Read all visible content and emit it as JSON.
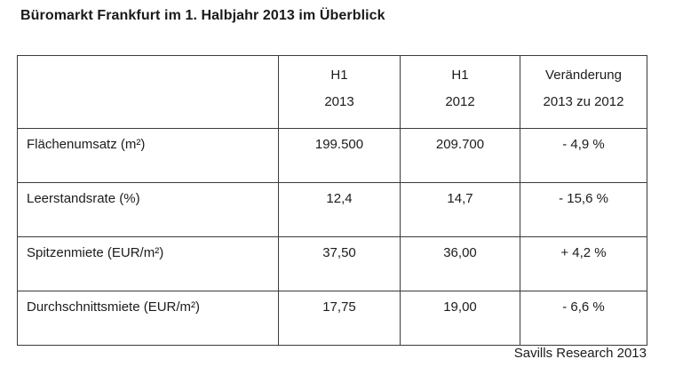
{
  "title": "Büromarkt Frankfurt im 1. Halbjahr 2013 im Überblick",
  "table": {
    "columns": [
      {
        "line1": "",
        "line2": ""
      },
      {
        "line1": "H1",
        "line2": "2013"
      },
      {
        "line1": "H1",
        "line2": "2012"
      },
      {
        "line1": "Veränderung",
        "line2": "2013 zu 2012"
      }
    ],
    "rows": [
      {
        "label": "Flächenumsatz (m²)",
        "values": [
          "199.500",
          "209.700",
          "- 4,9 %"
        ]
      },
      {
        "label": "Leerstandsrate (%)",
        "values": [
          "12,4",
          "14,7",
          "- 15,6 %"
        ]
      },
      {
        "label": "Spitzenmiete (EUR/m²)",
        "values": [
          "37,50",
          "36,00",
          "+ 4,2 %"
        ]
      },
      {
        "label": "Durchschnittsmiete (EUR/m²)",
        "values": [
          "17,75",
          "19,00",
          "- 6,6 %"
        ]
      }
    ]
  },
  "footer": {
    "source": "Savills Research 2013"
  }
}
